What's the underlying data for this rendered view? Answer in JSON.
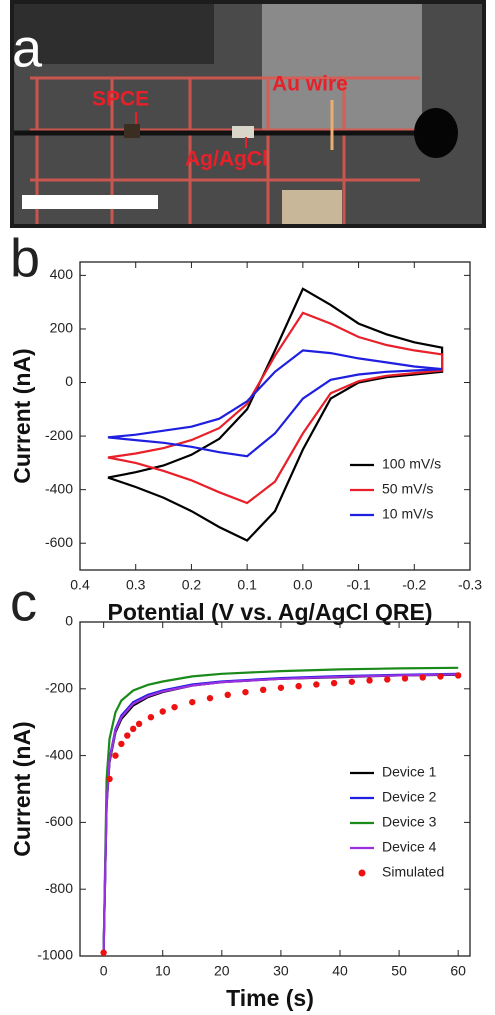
{
  "panel_a": {
    "panel_label": "a",
    "labels": [
      "SPCE",
      "Ag/AgCl",
      "Au wire"
    ]
  },
  "chart_data": [
    {
      "type": "line",
      "panel_label": "b",
      "x_label": "Potential (V vs. Ag/AgCl QRE)",
      "y_label": "Current (nA)",
      "xlim": [
        0.4,
        -0.3
      ],
      "xticks": [
        0.4,
        0.3,
        0.2,
        0.1,
        {
          "value": 0,
          "label": "0.0"
        },
        -0.1,
        -0.2,
        -0.3
      ],
      "ylim": [
        -700,
        450
      ],
      "yticks": [
        -600,
        -400,
        -200,
        0,
        200,
        400
      ],
      "legend": "lower right",
      "x": [
        0.35,
        0.3,
        0.25,
        0.2,
        0.15,
        0.1,
        0.05,
        0.0,
        -0.05,
        -0.1,
        -0.15,
        -0.2,
        -0.25,
        -0.25,
        -0.2,
        -0.15,
        -0.1,
        -0.05,
        0.0,
        0.05,
        0.1,
        0.15,
        0.2,
        0.25,
        0.3,
        0.35
      ],
      "series": [
        {
          "name": "100 mV/s",
          "color": "#000000",
          "style": "line",
          "values": [
            -355,
            -335,
            -310,
            -270,
            -210,
            -100,
            120,
            350,
            290,
            220,
            180,
            150,
            130,
            40,
            30,
            20,
            0,
            -60,
            -250,
            -480,
            -590,
            -540,
            -480,
            -430,
            -390,
            -355
          ]
        },
        {
          "name": "50 mV/s",
          "color": "#e8202a",
          "style": "line",
          "values": [
            -280,
            -265,
            -245,
            -215,
            -170,
            -80,
            100,
            260,
            220,
            170,
            140,
            120,
            105,
            45,
            35,
            25,
            5,
            -40,
            -190,
            -370,
            -450,
            -410,
            -365,
            -330,
            -300,
            -280
          ]
        },
        {
          "name": "10 mV/s",
          "color": "#1f1fe0",
          "style": "line",
          "values": [
            -205,
            -195,
            -180,
            -165,
            -135,
            -70,
            40,
            120,
            110,
            90,
            75,
            60,
            50,
            50,
            45,
            40,
            30,
            10,
            -60,
            -190,
            -275,
            -260,
            -240,
            -225,
            -215,
            -205
          ]
        }
      ]
    },
    {
      "type": "line",
      "panel_label": "c",
      "x_label": "Time (s)",
      "y_label": "Current (nA)",
      "xlim": [
        -4,
        62
      ],
      "xticks": [
        0,
        10,
        20,
        30,
        40,
        50,
        60
      ],
      "ylim": [
        -1000,
        0
      ],
      "yticks": [
        -1000,
        -800,
        -600,
        -400,
        -200,
        0
      ],
      "legend": "lower right",
      "x": [
        0,
        0.5,
        1,
        2,
        3,
        5,
        7.5,
        10,
        15,
        20,
        30,
        40,
        50,
        60
      ],
      "series": [
        {
          "name": "Device 1",
          "color": "#000000",
          "style": "line",
          "values": [
            -990,
            -550,
            -420,
            -330,
            -290,
            -250,
            -225,
            -210,
            -190,
            -180,
            -170,
            -165,
            -160,
            -158
          ]
        },
        {
          "name": "Device 2",
          "color": "#1f1fe0",
          "style": "line",
          "values": [
            -990,
            -540,
            -410,
            -320,
            -280,
            -240,
            -218,
            -205,
            -187,
            -178,
            -168,
            -162,
            -158,
            -155
          ]
        },
        {
          "name": "Device 3",
          "color": "#1a8a1a",
          "style": "line",
          "values": [
            -990,
            -470,
            -350,
            -270,
            -235,
            -205,
            -188,
            -178,
            -163,
            -155,
            -147,
            -142,
            -139,
            -137
          ]
        },
        {
          "name": "Device 4",
          "color": "#9b30e0",
          "style": "line",
          "values": [
            -990,
            -545,
            -415,
            -325,
            -285,
            -245,
            -222,
            -208,
            -190,
            -180,
            -170,
            -164,
            -160,
            -157
          ]
        },
        {
          "name": "Simulated",
          "color": "#ee1111",
          "style": "markers",
          "x": [
            0,
            1,
            2,
            3,
            4,
            5,
            6,
            8,
            10,
            12,
            15,
            18,
            21,
            24,
            27,
            30,
            33,
            36,
            39,
            42,
            45,
            48,
            51,
            54,
            57,
            60
          ],
          "values": [
            -990,
            -470,
            -400,
            -365,
            -340,
            -320,
            -305,
            -285,
            -268,
            -255,
            -240,
            -228,
            -218,
            -210,
            -203,
            -197,
            -192,
            -187,
            -183,
            -179,
            -175,
            -172,
            -169,
            -166,
            -163,
            -160
          ]
        }
      ]
    }
  ]
}
